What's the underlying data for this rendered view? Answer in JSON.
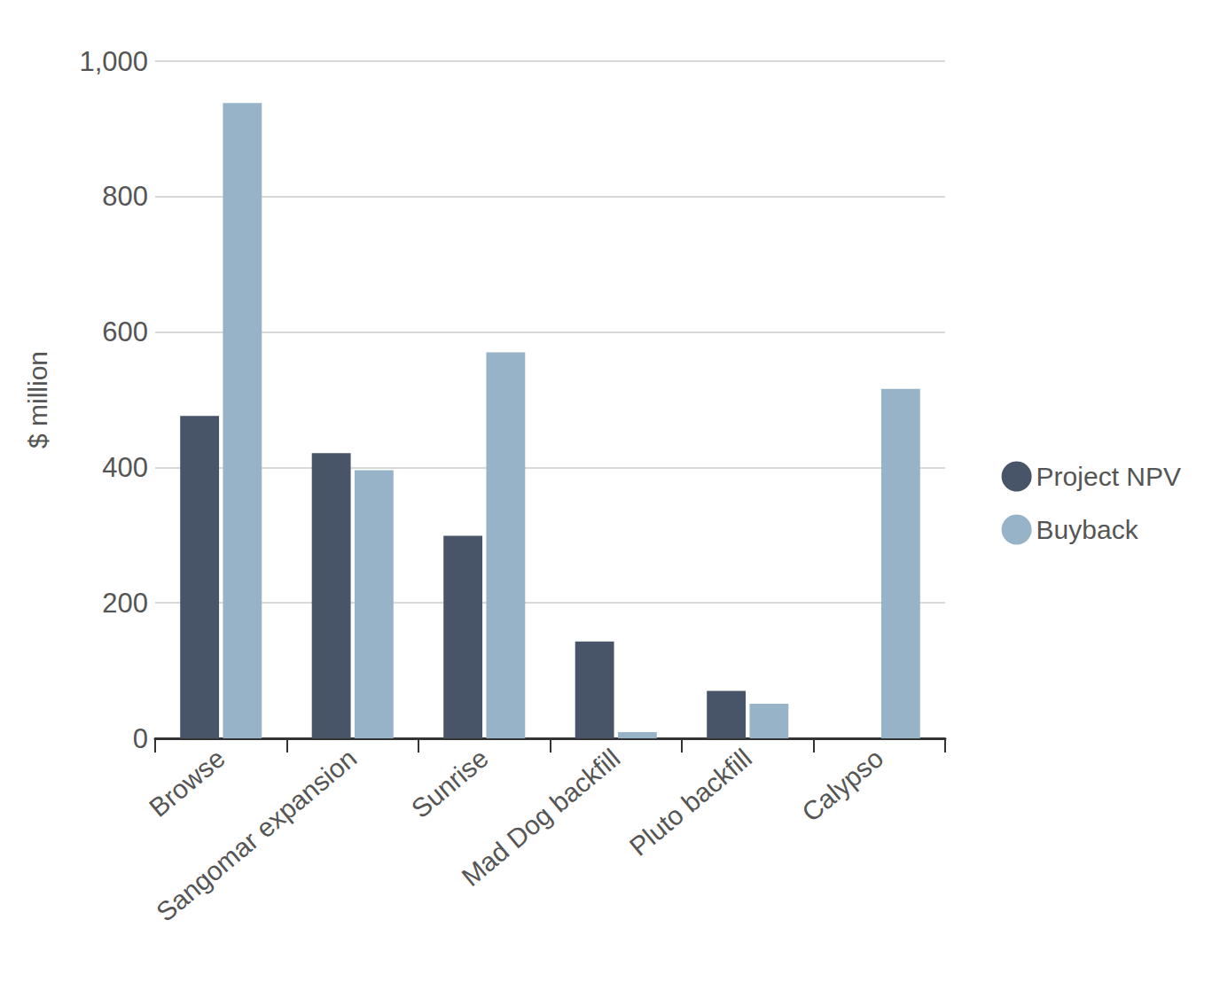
{
  "chart_data": {
    "type": "bar",
    "ylabel": "$ million",
    "categories": [
      "Browse",
      "Sangomar expansion",
      "Sunrise",
      "Mad Dog backfill",
      "Pluto backfill",
      "Calypso"
    ],
    "series": [
      {
        "name": "Project NPV",
        "color": "#485468",
        "values": [
          476,
          421,
          299,
          143,
          70,
          null
        ]
      },
      {
        "name": "Buyback",
        "color": "#97b3c7",
        "values": [
          938,
          396,
          570,
          9,
          51,
          516
        ]
      }
    ],
    "ylim": [
      0,
      1000
    ],
    "yticks": [
      0,
      200,
      400,
      600,
      800,
      {
        "value": 1000,
        "label": "1,000"
      }
    ],
    "grid": true,
    "legend": "right"
  }
}
